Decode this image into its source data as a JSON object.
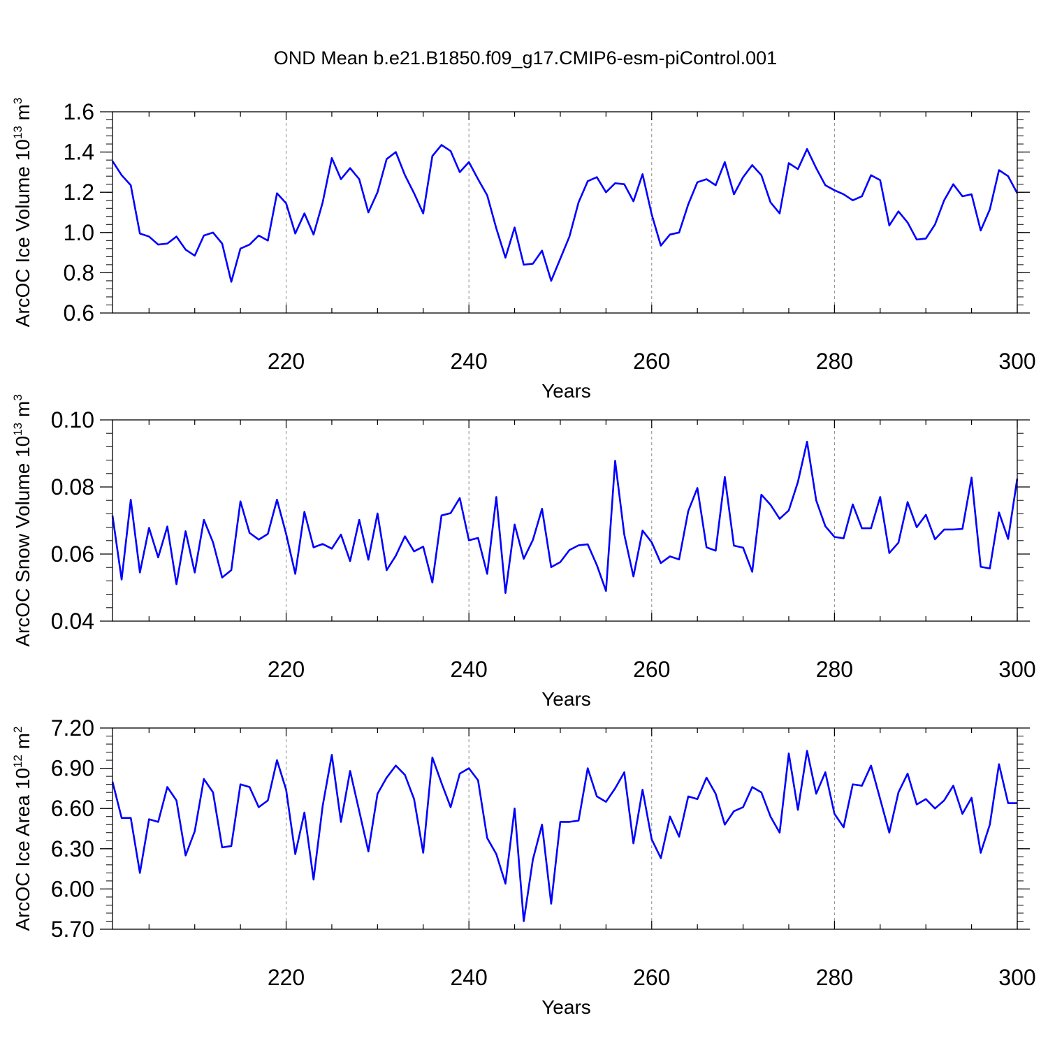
{
  "title": "OND Mean b.e21.B1850.f09_g17.CMIP6-esm-piControl.001",
  "colors": {
    "line": "#0000ff",
    "axis": "#000000",
    "grid": "#888888"
  },
  "chart_data": [
    {
      "type": "line",
      "ylabel_main": "ArcOC Ice Volume 10",
      "ylabel_exp": "13",
      "ylabel_unit": " m",
      "ylabel_unit_exp": "3",
      "xlabel": "Years",
      "xlim": [
        201,
        300
      ],
      "ylim": [
        0.6,
        1.6
      ],
      "xticks": [
        220,
        240,
        260,
        280,
        300
      ],
      "yticks": [
        0.6,
        0.8,
        1.0,
        1.2,
        1.4,
        1.6
      ],
      "ytick_labels": [
        "0.6",
        "0.8",
        "1.0",
        "1.2",
        "1.4",
        "1.6"
      ],
      "y_minor_step": 0.04,
      "x_start": 201,
      "series": [
        {
          "name": "Ice Volume",
          "values": [
            1.355,
            1.285,
            1.235,
            0.995,
            0.98,
            0.94,
            0.945,
            0.98,
            0.915,
            0.885,
            0.985,
            1.0,
            0.945,
            0.755,
            0.92,
            0.94,
            0.985,
            0.96,
            1.195,
            1.145,
            0.995,
            1.095,
            0.99,
            1.15,
            1.37,
            1.265,
            1.32,
            1.265,
            1.1,
            1.2,
            1.365,
            1.4,
            1.285,
            1.195,
            1.095,
            1.38,
            1.435,
            1.405,
            1.3,
            1.35,
            1.265,
            1.185,
            1.02,
            0.875,
            1.025,
            0.84,
            0.845,
            0.91,
            0.76,
            0.87,
            0.98,
            1.15,
            1.255,
            1.275,
            1.2,
            1.245,
            1.24,
            1.155,
            1.29,
            1.09,
            0.935,
            0.99,
            1.0,
            1.14,
            1.25,
            1.265,
            1.235,
            1.35,
            1.19,
            1.275,
            1.335,
            1.285,
            1.15,
            1.095,
            1.345,
            1.315,
            1.415,
            1.32,
            1.235,
            1.21,
            1.19,
            1.16,
            1.18,
            1.285,
            1.26,
            1.035,
            1.105,
            1.05,
            0.965,
            0.97,
            1.04,
            1.16,
            1.24,
            1.18,
            1.19,
            1.01,
            1.115,
            1.31,
            1.28,
            1.195
          ]
        }
      ]
    },
    {
      "type": "line",
      "ylabel_main": "ArcOC Snow Volume 10",
      "ylabel_exp": "13",
      "ylabel_unit": " m",
      "ylabel_unit_exp": "3",
      "xlabel": "Years",
      "xlim": [
        201,
        300
      ],
      "ylim": [
        0.04,
        0.1
      ],
      "xticks": [
        220,
        240,
        260,
        280,
        300
      ],
      "yticks": [
        0.04,
        0.06,
        0.08,
        0.1
      ],
      "ytick_labels": [
        "0.04",
        "0.06",
        "0.08",
        "0.10"
      ],
      "y_minor_step": 0.004,
      "x_start": 201,
      "series": [
        {
          "name": "Snow Volume",
          "values": [
            0.0715,
            0.0524,
            0.0762,
            0.0545,
            0.0678,
            0.059,
            0.0682,
            0.051,
            0.0668,
            0.0545,
            0.0702,
            0.0635,
            0.053,
            0.0552,
            0.0757,
            0.0663,
            0.0643,
            0.066,
            0.0762,
            0.066,
            0.0541,
            0.0726,
            0.062,
            0.063,
            0.0616,
            0.0658,
            0.0579,
            0.0702,
            0.0583,
            0.0721,
            0.0552,
            0.0595,
            0.0653,
            0.0608,
            0.0622,
            0.0515,
            0.0715,
            0.0722,
            0.0767,
            0.0641,
            0.0648,
            0.0541,
            0.077,
            0.0484,
            0.0688,
            0.0586,
            0.0642,
            0.0735,
            0.0561,
            0.0576,
            0.0612,
            0.0626,
            0.0629,
            0.0567,
            0.049,
            0.0878,
            0.0658,
            0.0533,
            0.067,
            0.0635,
            0.0573,
            0.0593,
            0.0584,
            0.0728,
            0.0797,
            0.062,
            0.061,
            0.083,
            0.0625,
            0.0619,
            0.0547,
            0.0777,
            0.0747,
            0.0705,
            0.073,
            0.0815,
            0.0935,
            0.076,
            0.0683,
            0.0651,
            0.0647,
            0.0748,
            0.0677,
            0.0677,
            0.077,
            0.0603,
            0.0634,
            0.0755,
            0.068,
            0.0717,
            0.0644,
            0.0673,
            0.0673,
            0.0675,
            0.0828,
            0.0562,
            0.0557,
            0.0724,
            0.0645,
            0.0825
          ]
        }
      ]
    },
    {
      "type": "line",
      "ylabel_main": "ArcOC Ice Area 10",
      "ylabel_exp": "12",
      "ylabel_unit": " m",
      "ylabel_unit_exp": "2",
      "xlabel": "Years",
      "xlim": [
        201,
        300
      ],
      "ylim": [
        5.7,
        7.2
      ],
      "xticks": [
        220,
        240,
        260,
        280,
        300
      ],
      "yticks": [
        5.7,
        6.0,
        6.3,
        6.6,
        6.9,
        7.2
      ],
      "ytick_labels": [
        "5.70",
        "6.00",
        "6.30",
        "6.60",
        "6.90",
        "7.20"
      ],
      "y_minor_step": 0.06,
      "x_start": 201,
      "series": [
        {
          "name": "Ice Area",
          "values": [
            6.8,
            6.53,
            6.53,
            6.12,
            6.52,
            6.5,
            6.76,
            6.66,
            6.25,
            6.43,
            6.82,
            6.72,
            6.31,
            6.32,
            6.78,
            6.76,
            6.61,
            6.66,
            6.96,
            6.74,
            6.26,
            6.57,
            6.07,
            6.62,
            7.0,
            6.5,
            6.88,
            6.58,
            6.28,
            6.71,
            6.83,
            6.92,
            6.85,
            6.67,
            6.27,
            6.98,
            6.79,
            6.61,
            6.86,
            6.9,
            6.81,
            6.38,
            6.26,
            6.04,
            6.6,
            5.76,
            6.22,
            6.48,
            5.89,
            6.5,
            6.5,
            6.51,
            6.9,
            6.69,
            6.65,
            6.75,
            6.87,
            6.34,
            6.74,
            6.37,
            6.23,
            6.54,
            6.39,
            6.69,
            6.67,
            6.83,
            6.71,
            6.48,
            6.58,
            6.61,
            6.76,
            6.72,
            6.54,
            6.42,
            7.01,
            6.59,
            7.03,
            6.71,
            6.87,
            6.56,
            6.46,
            6.78,
            6.77,
            6.92,
            6.67,
            6.42,
            6.72,
            6.86,
            6.63,
            6.67,
            6.6,
            6.66,
            6.77,
            6.56,
            6.68,
            6.27,
            6.48,
            6.93,
            6.64,
            6.64
          ]
        }
      ]
    }
  ]
}
